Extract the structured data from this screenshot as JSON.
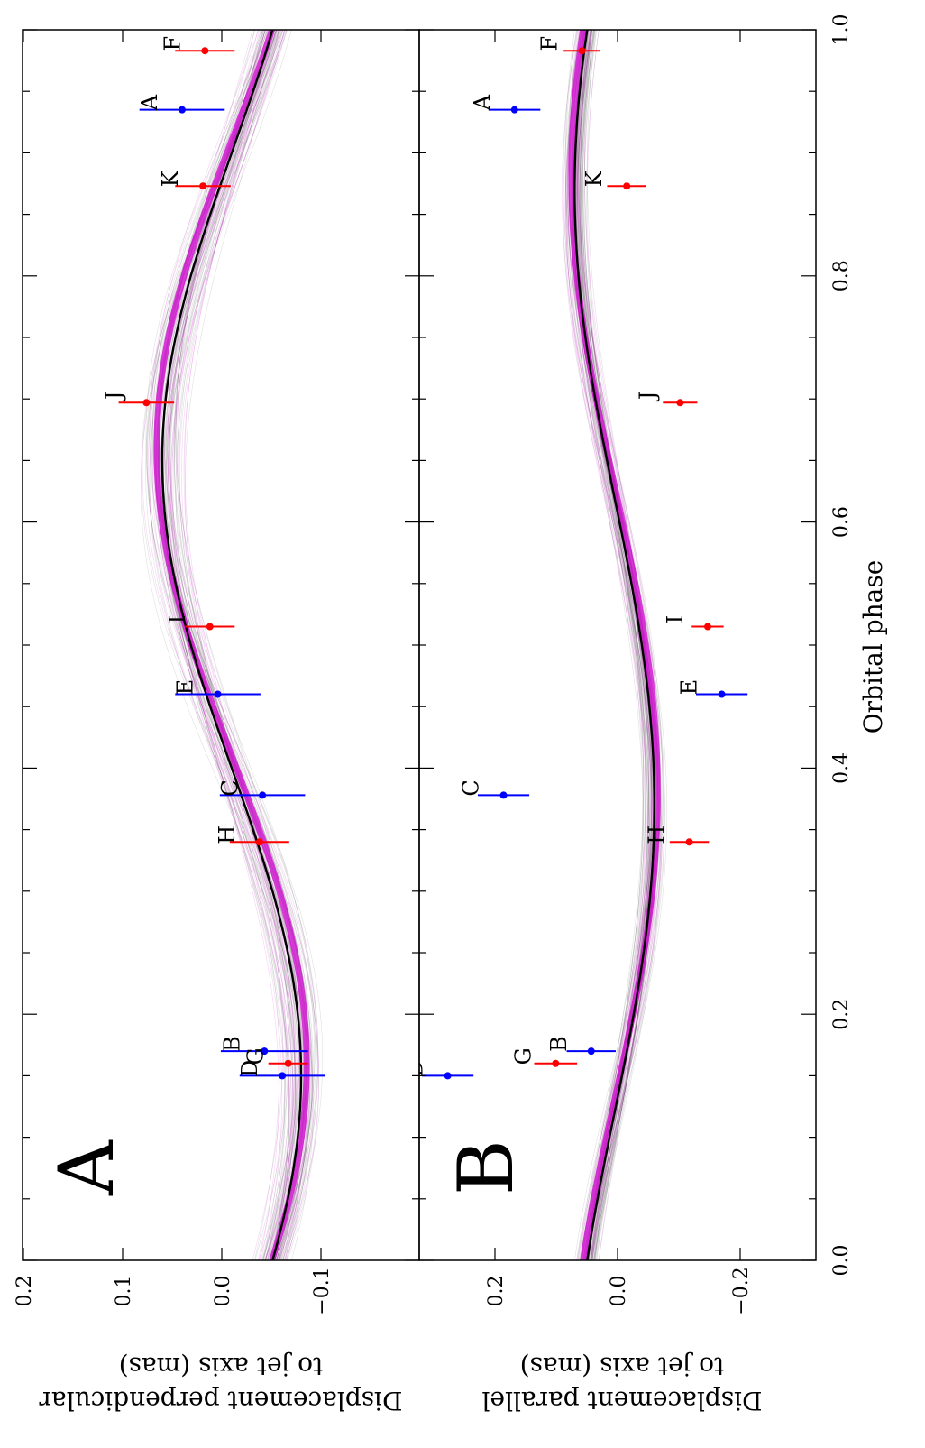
{
  "chart_data": {
    "type": "scatter",
    "orientation": "rotated-90-cw",
    "xlabel": "Orbital phase",
    "xlim": [
      0.0,
      1.0
    ],
    "xticks": [
      "0.0",
      "0.2",
      "0.4",
      "0.6",
      "0.8",
      "1.0"
    ],
    "panels": [
      {
        "letter": "A",
        "ylabel_line1": "Displacement perpendicular",
        "ylabel_line2": "to jet axis (mas)",
        "ylim": [
          -0.2,
          0.2
        ],
        "yticks": [
          {
            "value": 0.2,
            "label": "0.2"
          },
          {
            "value": 0.1,
            "label": "0.1"
          },
          {
            "value": 0.0,
            "label": "0.0"
          },
          {
            "value": -0.1,
            "label": "−0.1"
          }
        ],
        "model": {
          "mean": -0.01,
          "amplitude": 0.07,
          "phase_min": 0.15
        },
        "points": [
          {
            "label": "A",
            "phase": 0.935,
            "value": 0.04,
            "err": 0.043,
            "color": "blue"
          },
          {
            "label": "B",
            "phase": 0.17,
            "value": -0.043,
            "err": 0.044,
            "color": "blue"
          },
          {
            "label": "C",
            "phase": 0.378,
            "value": -0.041,
            "err": 0.043,
            "color": "blue"
          },
          {
            "label": "D",
            "phase": 0.15,
            "value": -0.061,
            "err": 0.043,
            "color": "blue"
          },
          {
            "label": "E",
            "phase": 0.46,
            "value": 0.004,
            "err": 0.043,
            "color": "blue"
          },
          {
            "label": "F",
            "phase": 0.983,
            "value": 0.017,
            "err": 0.03,
            "color": "red"
          },
          {
            "label": "G",
            "phase": 0.16,
            "value": -0.067,
            "err": 0.02,
            "color": "red"
          },
          {
            "label": "H",
            "phase": 0.34,
            "value": -0.038,
            "err": 0.03,
            "color": "red"
          },
          {
            "label": "I",
            "phase": 0.515,
            "value": 0.012,
            "err": 0.025,
            "color": "red"
          },
          {
            "label": "J",
            "phase": 0.697,
            "value": 0.076,
            "err": 0.028,
            "color": "red"
          },
          {
            "label": "K",
            "phase": 0.873,
            "value": 0.019,
            "err": 0.028,
            "color": "red"
          }
        ]
      },
      {
        "letter": "B",
        "ylabel_line1": "Displacement parallel",
        "ylabel_line2": "to jet axis (mas)",
        "ylim": [
          -0.34,
          0.3
        ],
        "yticks": [
          {
            "value": 0.2,
            "label": "0.2"
          },
          {
            "value": 0.0,
            "label": "0.0"
          },
          {
            "value": -0.2,
            "label": "−0.2"
          }
        ],
        "model": {
          "mean": 0.005,
          "amplitude": 0.065,
          "phase_min": 0.37
        },
        "points": [
          {
            "label": "A",
            "phase": 0.935,
            "value": 0.168,
            "err": 0.042,
            "color": "blue"
          },
          {
            "label": "B",
            "phase": 0.17,
            "value": 0.043,
            "err": 0.04,
            "color": "blue"
          },
          {
            "label": "C",
            "phase": 0.378,
            "value": 0.186,
            "err": 0.042,
            "color": "blue"
          },
          {
            "label": "D",
            "phase": 0.15,
            "value": 0.277,
            "err": 0.042,
            "color": "blue"
          },
          {
            "label": "E",
            "phase": 0.46,
            "value": -0.17,
            "err": 0.042,
            "color": "blue"
          },
          {
            "label": "F",
            "phase": 0.983,
            "value": 0.058,
            "err": 0.03,
            "color": "red"
          },
          {
            "label": "G",
            "phase": 0.16,
            "value": 0.101,
            "err": 0.035,
            "color": "red"
          },
          {
            "label": "H",
            "phase": 0.34,
            "value": -0.117,
            "err": 0.032,
            "color": "red"
          },
          {
            "label": "I",
            "phase": 0.515,
            "value": -0.147,
            "err": 0.026,
            "color": "red"
          },
          {
            "label": "J",
            "phase": 0.697,
            "value": -0.102,
            "err": 0.028,
            "color": "red"
          },
          {
            "label": "K",
            "phase": 0.873,
            "value": -0.015,
            "err": 0.032,
            "color": "red"
          }
        ]
      }
    ],
    "colors": {
      "blue": "#0000ff",
      "red": "#ff0000",
      "model_best": "#000000",
      "model_alt": "#cc00cc",
      "model_samples": "#555555"
    }
  }
}
